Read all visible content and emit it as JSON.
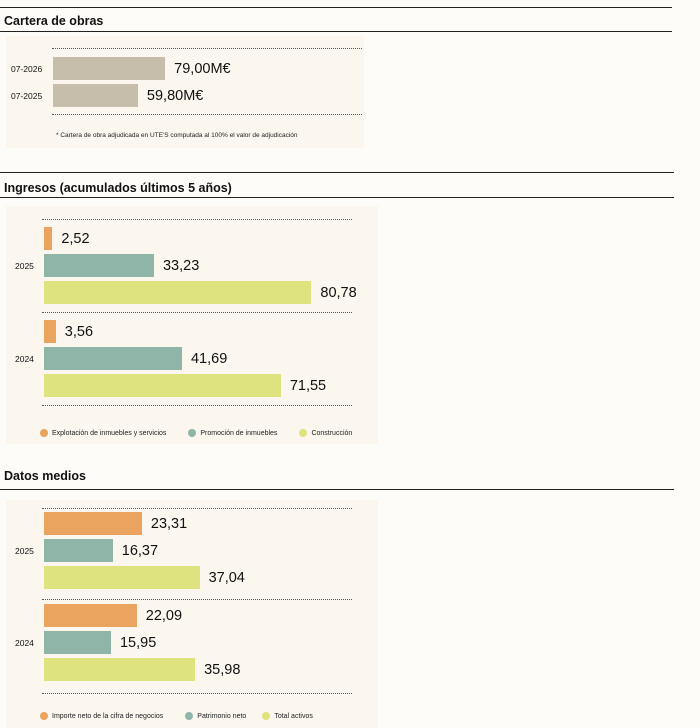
{
  "colors": {
    "cartera": "#c6bdaa",
    "explotacion": "#eaa45f",
    "promocion": "#8fb5a8",
    "construccion": "#dfe37d",
    "importe": "#eaa45f",
    "patrimonio": "#8fb5a8",
    "activos": "#dfe37d"
  },
  "sections": {
    "cartera_title": "Cartera de obras",
    "ingresos_title": "Ingresos (acumulados últimos 5 años)",
    "datos_title": "Datos medios"
  },
  "cartera_note": "* Cartera de obra adjudicada en UTE'S computada al 100% el valor de adjudicación",
  "chart_data": [
    {
      "type": "bar",
      "orientation": "horizontal",
      "title": "Cartera de obras",
      "categories": [
        "07-2026",
        "07-2025"
      ],
      "values": [
        79.0,
        59.8
      ],
      "value_labels": [
        "79,00M€",
        "59,80M€"
      ],
      "unit": "M€"
    },
    {
      "type": "bar",
      "orientation": "horizontal",
      "title": "Ingresos (acumulados últimos 5 años)",
      "categories": [
        "2025",
        "2024"
      ],
      "series": [
        {
          "name": "Explotación de inmuebles y servicios",
          "values": [
            2.52,
            3.56
          ],
          "labels": [
            "2,52",
            "3,56"
          ]
        },
        {
          "name": "Promoción de inmuebles",
          "values": [
            33.23,
            41.69
          ],
          "labels": [
            "33,23",
            "41,69"
          ]
        },
        {
          "name": "Construcción",
          "values": [
            80.78,
            71.55
          ],
          "labels": [
            "80,78",
            "71,55"
          ]
        }
      ],
      "legend": "bottom"
    },
    {
      "type": "bar",
      "orientation": "horizontal",
      "title": "Datos medios",
      "categories": [
        "2025",
        "2024"
      ],
      "series": [
        {
          "name": "Importe neto de la cifra de negocios",
          "values": [
            23.31,
            22.09
          ],
          "labels": [
            "23,31",
            "22,09"
          ]
        },
        {
          "name": "Patrimonio neto",
          "values": [
            16.37,
            15.95
          ],
          "labels": [
            "16,37",
            "15,95"
          ]
        },
        {
          "name": "Total activos",
          "values": [
            37.04,
            35.98
          ],
          "labels": [
            "37,04",
            "35,98"
          ]
        }
      ],
      "legend": "bottom"
    }
  ]
}
